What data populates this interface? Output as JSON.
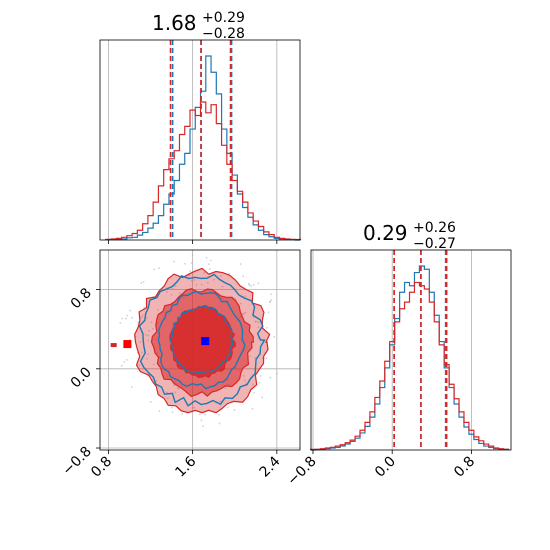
{
  "figure": {
    "panels": [
      "hist-x",
      "hist-y",
      "joint-xy"
    ]
  },
  "chart_data": [
    {
      "type": "histogram",
      "panel": "hist-x",
      "title": {
        "median": "1.68",
        "plus": "+0.29",
        "minus": "−0.28"
      },
      "xlim": [
        0.72,
        2.62
      ],
      "xticks": [
        0.8,
        1.6,
        2.4
      ],
      "xticklabels": [
        "0.8",
        "1.6",
        "2.4"
      ],
      "grid": true,
      "series": [
        {
          "color": "#1f77b4",
          "quantiles": [
            1.41,
            1.68,
            1.97
          ],
          "x": [
            0.8,
            0.85,
            0.9,
            0.95,
            1.0,
            1.05,
            1.1,
            1.15,
            1.2,
            1.25,
            1.3,
            1.35,
            1.4,
            1.45,
            1.5,
            1.55,
            1.6,
            1.65,
            1.7,
            1.75,
            1.8,
            1.85,
            1.9,
            1.95,
            2.0,
            2.05,
            2.1,
            2.15,
            2.2,
            2.25,
            2.3,
            2.35,
            2.4,
            2.45,
            2.5,
            2.55,
            2.6
          ],
          "counts": [
            1,
            1,
            1,
            2,
            4,
            5,
            9,
            14,
            22,
            31,
            45,
            66,
            85,
            110,
            140,
            160,
            205,
            245,
            275,
            340,
            310,
            270,
            205,
            160,
            120,
            85,
            60,
            42,
            28,
            18,
            10,
            6,
            3,
            2,
            1,
            1,
            0
          ]
        },
        {
          "color": "#d62728",
          "quantiles": [
            1.39,
            1.68,
            1.96
          ],
          "x": [
            0.8,
            0.85,
            0.9,
            0.95,
            1.0,
            1.05,
            1.1,
            1.15,
            1.2,
            1.25,
            1.3,
            1.35,
            1.4,
            1.45,
            1.5,
            1.55,
            1.6,
            1.65,
            1.7,
            1.75,
            1.8,
            1.85,
            1.9,
            1.95,
            2.0,
            2.05,
            2.1,
            2.15,
            2.2,
            2.25,
            2.3,
            2.35,
            2.4,
            2.45,
            2.5,
            2.55,
            2.6
          ],
          "counts": [
            1,
            2,
            3,
            5,
            8,
            12,
            18,
            30,
            45,
            70,
            100,
            130,
            150,
            165,
            195,
            210,
            240,
            230,
            255,
            235,
            250,
            215,
            175,
            140,
            110,
            90,
            70,
            50,
            35,
            25,
            15,
            10,
            5,
            3,
            2,
            1,
            1
          ]
        }
      ]
    },
    {
      "type": "histogram",
      "panel": "hist-y",
      "title": {
        "median": "0.29",
        "plus": "+0.26",
        "minus": "−0.27"
      },
      "xlim": [
        -0.82,
        1.2
      ],
      "xticks": [
        -0.8,
        0.0,
        0.8
      ],
      "xticklabels": [
        "−0.8",
        "0.0",
        "0.8"
      ],
      "grid": true,
      "series": [
        {
          "color": "#1f77b4",
          "quantiles": [
            0.02,
            0.29,
            0.54
          ],
          "x": [
            -0.8,
            -0.75,
            -0.7,
            -0.65,
            -0.6,
            -0.55,
            -0.5,
            -0.45,
            -0.4,
            -0.35,
            -0.3,
            -0.25,
            -0.2,
            -0.15,
            -0.1,
            -0.05,
            0.0,
            0.05,
            0.1,
            0.15,
            0.2,
            0.25,
            0.3,
            0.35,
            0.4,
            0.45,
            0.5,
            0.55,
            0.6,
            0.65,
            0.7,
            0.75,
            0.8,
            0.85,
            0.9,
            0.95,
            1.0,
            1.05,
            1.1,
            1.15
          ],
          "counts": [
            0,
            1,
            1,
            2,
            3,
            4,
            6,
            9,
            13,
            18,
            26,
            36,
            50,
            70,
            95,
            125,
            160,
            200,
            240,
            255,
            250,
            270,
            280,
            275,
            240,
            205,
            165,
            125,
            95,
            70,
            50,
            35,
            24,
            16,
            10,
            6,
            4,
            2,
            1,
            1
          ]
        },
        {
          "color": "#d62728",
          "quantiles": [
            0.02,
            0.29,
            0.55
          ],
          "x": [
            -0.8,
            -0.75,
            -0.7,
            -0.65,
            -0.6,
            -0.55,
            -0.5,
            -0.45,
            -0.4,
            -0.35,
            -0.3,
            -0.25,
            -0.2,
            -0.15,
            -0.1,
            -0.05,
            0.0,
            0.05,
            0.1,
            0.15,
            0.2,
            0.25,
            0.3,
            0.35,
            0.4,
            0.45,
            0.5,
            0.55,
            0.6,
            0.65,
            0.7,
            0.75,
            0.8,
            0.85,
            0.9,
            0.95,
            1.0,
            1.05,
            1.1,
            1.15
          ],
          "counts": [
            1,
            1,
            2,
            3,
            4,
            6,
            8,
            11,
            15,
            21,
            30,
            42,
            58,
            80,
            105,
            135,
            165,
            195,
            215,
            225,
            240,
            255,
            250,
            245,
            225,
            195,
            160,
            130,
            100,
            78,
            58,
            42,
            30,
            20,
            14,
            9,
            6,
            3,
            2,
            1
          ]
        }
      ]
    },
    {
      "type": "scatter",
      "panel": "joint-xy",
      "xlim": [
        0.72,
        2.62
      ],
      "ylim": [
        -0.82,
        1.2
      ],
      "xticks": [
        0.8,
        1.6,
        2.4
      ],
      "yticks": [
        -0.8,
        0.0,
        0.8
      ],
      "xticklabels": [
        "0.8",
        "1.6",
        "2.4"
      ],
      "yticklabels": [
        "−0.8",
        "0.0",
        "0.8"
      ],
      "grid": true,
      "contours": [
        {
          "color": "#d62728",
          "filled": true,
          "levels": [
            {
              "alpha": 0.35,
              "rx": 0.62,
              "ry": 0.71
            },
            {
              "alpha": 0.55,
              "rx": 0.46,
              "ry": 0.53
            },
            {
              "alpha": 0.85,
              "rx": 0.3,
              "ry": 0.35
            }
          ],
          "center": [
            1.69,
            0.27
          ]
        },
        {
          "color": "#1f77b4",
          "filled": false,
          "levels": [
            {
              "rx": 0.57,
              "ry": 0.65
            },
            {
              "rx": 0.41,
              "ry": 0.47
            },
            {
              "rx": 0.29,
              "ry": 0.33
            }
          ],
          "center": [
            1.68,
            0.29
          ]
        }
      ],
      "markers": [
        {
          "color": "#ff0000",
          "shape": "square",
          "x": 0.98,
          "y": 0.25
        },
        {
          "color": "#0000ff",
          "shape": "square",
          "x": 1.72,
          "y": 0.28
        }
      ],
      "extra_points": [
        {
          "color": "#d62728",
          "x": 0.85,
          "y": 0.24,
          "shape": "x"
        }
      ]
    }
  ]
}
